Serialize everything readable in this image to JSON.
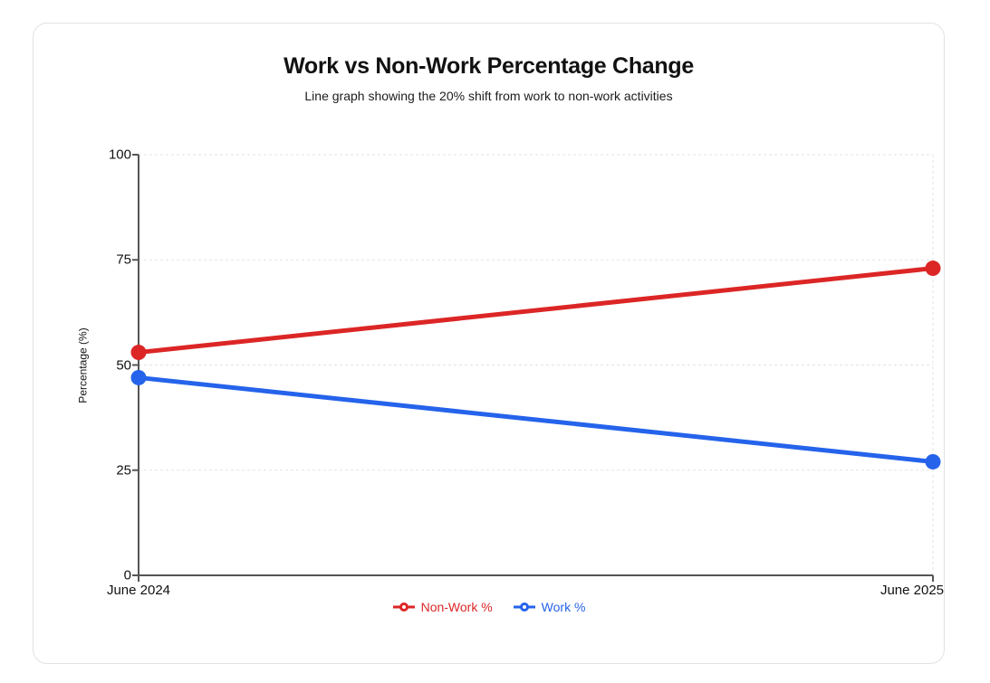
{
  "header": {
    "title": "Work vs Non-Work Percentage Change",
    "subtitle": "Line graph showing the 20% shift from work to non-work activities"
  },
  "colors": {
    "non_work": "#dc2626",
    "work": "#2563eb",
    "axis": "#555555",
    "gridline": "#e3e3e3",
    "text": "#111111",
    "card_border": "#e2e2e2"
  },
  "chart_data": {
    "type": "line",
    "categories": [
      "June 2024",
      "June 2025"
    ],
    "series": [
      {
        "name": "Non-Work %",
        "color": "#dc2626",
        "values": [
          53,
          73
        ]
      },
      {
        "name": "Work %",
        "color": "#2563eb",
        "values": [
          47,
          27
        ]
      }
    ],
    "title": "Work vs Non-Work Percentage Change",
    "xlabel": "",
    "ylabel": "Percentage (%)",
    "ylim": [
      0,
      100
    ],
    "yticks": [
      0,
      25,
      50,
      75,
      100
    ],
    "grid": true,
    "grid_style": "dashed",
    "legend_position": "bottom",
    "marker": "filled-circle"
  }
}
